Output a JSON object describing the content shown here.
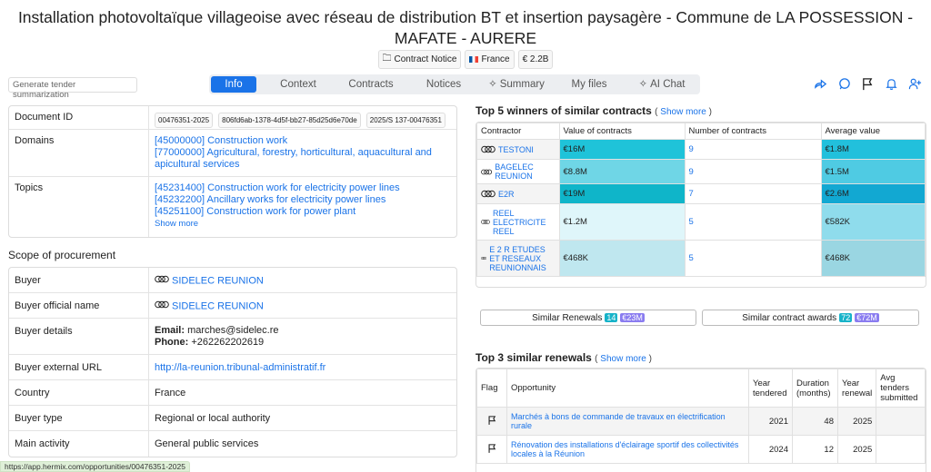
{
  "title": "Installation photovoltaïque villageoise avec réseau de distribution BT et insertion paysagère - Commune de LA POSSESSION - MAFATE - AURERE",
  "badges": {
    "notice": "Contract Notice",
    "country": "France",
    "value": "€ 2.2B"
  },
  "gen_button": "Generate tender summarization",
  "tabs": [
    "Info",
    "Context",
    "Contracts",
    "Notices",
    "Summary",
    "My files",
    "AI Chat"
  ],
  "doc": {
    "id_label": "Document ID",
    "ids": [
      "00476351-2025",
      "806fd6ab-1378-4d5f-bb27-85d25d6e70de",
      "2025/S 137-00476351"
    ],
    "domains_label": "Domains",
    "domains": [
      "[45000000] Construction work",
      "[77000000] Agricultural, forestry, horticultural, aquacultural and apicultural services"
    ],
    "topics_label": "Topics",
    "topics": [
      "[45231400] Construction work for electricity power lines",
      "[45232200] Ancillary works for electricity power lines",
      "[45251100] Construction work for power plant"
    ],
    "show_more": "Show more"
  },
  "scope": {
    "title": "Scope of procurement",
    "rows": {
      "buyer_label": "Buyer",
      "buyer": "SIDELEC REUNION",
      "official_label": "Buyer official name",
      "official": "SIDELEC REUNION",
      "details_label": "Buyer details",
      "email_label": "Email:",
      "email": "marches@sidelec.re",
      "phone_label": "Phone:",
      "phone": "+262262202619",
      "url_label": "Buyer external URL",
      "url": "http://la-reunion.tribunal-administratif.fr",
      "country_label": "Country",
      "country": "France",
      "type_label": "Buyer type",
      "type": "Regional or local authority",
      "activity_label": "Main activity",
      "activity": "General public services"
    }
  },
  "winners": {
    "title": "Top 5 winners of similar contracts",
    "show_more": "Show more",
    "headers": [
      "Contractor",
      "Value of contracts",
      "Number of contracts",
      "Average value"
    ],
    "rows": [
      {
        "name": "TESTONI",
        "value": "€16M",
        "count": "9",
        "avg": "€1.8M"
      },
      {
        "name": "BAGELEC REUNION",
        "value": "€8.8M",
        "count": "9",
        "avg": "€1.5M"
      },
      {
        "name": "E2R",
        "value": "€19M",
        "count": "7",
        "avg": "€2.6M"
      },
      {
        "name": "REEL ELECTRICITE REEL",
        "value": "€1.2M",
        "count": "5",
        "avg": "€582K"
      },
      {
        "name": "E 2 R ETUDES ET RESEAUX REUNIONNAIS",
        "value": "€468K",
        "count": "5",
        "avg": "€468K"
      }
    ],
    "colors": {
      "value": [
        "#1fc3d9",
        "#6fd6e6",
        "#0fb5c9",
        "#dff6fa",
        "#bfe7ef"
      ],
      "avg": [
        "#22c0dc",
        "#4fcbe3",
        "#12a8d2",
        "#8fdcec",
        "#9ad6e2"
      ]
    }
  },
  "similar": {
    "renewals_label": "Similar Renewals",
    "renewals_count": "14",
    "renewals_value": "€23M",
    "awards_label": "Similar contract awards",
    "awards_count": "72",
    "awards_value": "€72M"
  },
  "renewals": {
    "title": "Top 3 similar renewals",
    "show_more": "Show more",
    "headers": [
      "Flag",
      "Opportunity",
      "Year tendered",
      "Duration (months)",
      "Year renewal",
      "Avg tenders submitted"
    ],
    "rows": [
      {
        "opportunity": "Marchés à bons de commande de travaux en électrification rurale",
        "year": "2021",
        "duration": "48",
        "renewal": "2025",
        "avg": ""
      },
      {
        "opportunity": "Rénovation des installations d'éclairage sportif des collectivités locales à la Réunion",
        "year": "2024",
        "duration": "12",
        "renewal": "2025",
        "avg": ""
      }
    ]
  },
  "status_url": "https://app.hermix.com/opportunities/00476351-2025"
}
